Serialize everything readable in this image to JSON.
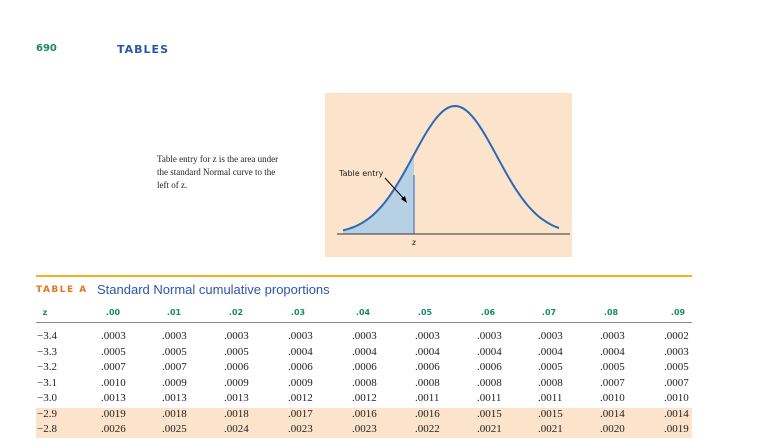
{
  "header": {
    "page_number": "690",
    "title": "TABLES"
  },
  "figure": {
    "caption_lines": [
      "Table entry for z is the area under",
      "the standard Normal curve to the",
      "left of z."
    ],
    "label": "Table entry",
    "axis_label": "z"
  },
  "table": {
    "label": "TABLE A",
    "title": "Standard Normal cumulative proportions",
    "columns": [
      "z",
      ".00",
      ".01",
      ".02",
      ".03",
      ".04",
      ".05",
      ".06",
      ".07",
      ".08",
      ".09"
    ],
    "rows": [
      [
        "−3.4",
        ".0003",
        ".0003",
        ".0003",
        ".0003",
        ".0003",
        ".0003",
        ".0003",
        ".0003",
        ".0003",
        ".0002"
      ],
      [
        "−3.3",
        ".0005",
        ".0005",
        ".0005",
        ".0004",
        ".0004",
        ".0004",
        ".0004",
        ".0004",
        ".0004",
        ".0003"
      ],
      [
        "−3.2",
        ".0007",
        ".0007",
        ".0006",
        ".0006",
        ".0006",
        ".0006",
        ".0006",
        ".0005",
        ".0005",
        ".0005"
      ],
      [
        "−3.1",
        ".0010",
        ".0009",
        ".0009",
        ".0009",
        ".0008",
        ".0008",
        ".0008",
        ".0008",
        ".0007",
        ".0007"
      ],
      [
        "−3.0",
        ".0013",
        ".0013",
        ".0013",
        ".0012",
        ".0012",
        ".0011",
        ".0011",
        ".0011",
        ".0010",
        ".0010"
      ],
      [
        "−2.9",
        ".0019",
        ".0018",
        ".0018",
        ".0017",
        ".0016",
        ".0016",
        ".0015",
        ".0015",
        ".0014",
        ".0014"
      ],
      [
        "−2.8",
        ".0026",
        ".0025",
        ".0024",
        ".0023",
        ".0023",
        ".0022",
        ".0021",
        ".0021",
        ".0020",
        ".0019"
      ]
    ]
  }
}
